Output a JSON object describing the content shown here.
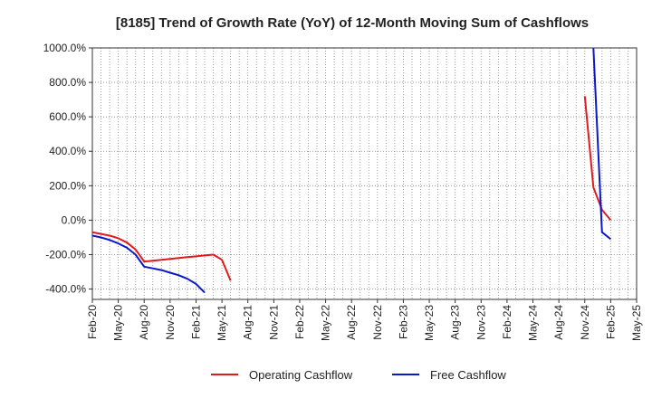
{
  "chart_data": {
    "type": "line",
    "title": "[8185]  Trend of Growth Rate (YoY) of 12-Month Moving Sum of Cashflows",
    "xlabel": "",
    "ylabel": "",
    "ylim": [
      -460,
      1000
    ],
    "yticks": [
      1000,
      800,
      600,
      400,
      200,
      0,
      -200,
      -400
    ],
    "ytick_labels": [
      "1000.0%",
      "800.0%",
      "600.0%",
      "400.0%",
      "200.0%",
      "0.0%",
      "-200.0%",
      "-400.0%"
    ],
    "x_tick_labels": [
      "Feb-20",
      "May-20",
      "Aug-20",
      "Nov-20",
      "Feb-21",
      "May-21",
      "Aug-21",
      "Nov-21",
      "Feb-22",
      "May-22",
      "Aug-22",
      "Nov-22",
      "Feb-23",
      "May-23",
      "Aug-23",
      "Nov-23",
      "Feb-24",
      "May-24",
      "Aug-24",
      "Nov-24",
      "Feb-25",
      "May-25"
    ],
    "x_range_months": [
      0,
      63
    ],
    "grid": true,
    "legend_position": "bottom",
    "series": [
      {
        "name": "Operating Cashflow",
        "color": "#e31a1c",
        "points": [
          [
            0,
            -70
          ],
          [
            1,
            -80
          ],
          [
            2,
            -90
          ],
          [
            3,
            -105
          ],
          [
            4,
            -130
          ],
          [
            5,
            -170
          ],
          [
            6,
            -240
          ],
          [
            7,
            -235
          ],
          [
            8,
            -230
          ],
          [
            9,
            -225
          ],
          [
            10,
            -220
          ],
          [
            11,
            -215
          ],
          [
            12,
            -210
          ],
          [
            13,
            -205
          ],
          [
            14,
            -200
          ],
          [
            15,
            -230
          ],
          [
            16,
            -350
          ],
          [
            null,
            null
          ],
          [
            57,
            720
          ],
          [
            58,
            190
          ],
          [
            59,
            60
          ],
          [
            60,
            0
          ]
        ]
      },
      {
        "name": "Free Cashflow",
        "color": "#0b18c8",
        "points": [
          [
            0,
            -90
          ],
          [
            1,
            -100
          ],
          [
            2,
            -115
          ],
          [
            3,
            -135
          ],
          [
            4,
            -160
          ],
          [
            5,
            -200
          ],
          [
            6,
            -270
          ],
          [
            7,
            -280
          ],
          [
            8,
            -290
          ],
          [
            9,
            -305
          ],
          [
            10,
            -320
          ],
          [
            11,
            -340
          ],
          [
            12,
            -370
          ],
          [
            13,
            -420
          ],
          [
            null,
            null
          ],
          [
            58,
            1000
          ],
          [
            59,
            -70
          ],
          [
            60,
            -110
          ]
        ]
      }
    ]
  }
}
